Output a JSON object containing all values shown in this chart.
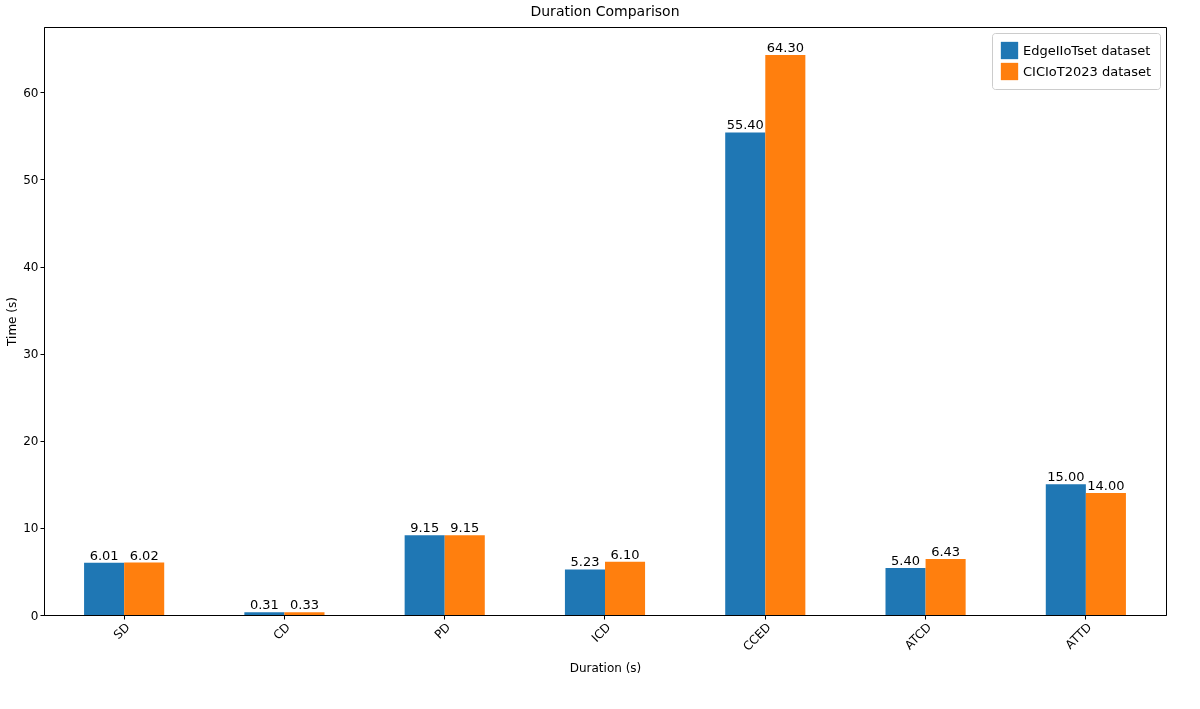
{
  "chart_data": {
    "type": "bar",
    "title": "Duration Comparison",
    "xlabel": "Duration (s)",
    "ylabel": "Time (s)",
    "categories": [
      "SD",
      "CD",
      "PD",
      "ICD",
      "CCED",
      "ATCD",
      "ATTD"
    ],
    "series": [
      {
        "name": "EdgeIIoTset dataset",
        "color": "#1f77b4",
        "values": [
          6.01,
          0.31,
          9.15,
          5.23,
          55.4,
          5.4,
          15.0
        ],
        "value_labels": [
          "6.01",
          "0.31",
          "9.15",
          "5.23",
          "55.40",
          "5.40",
          "15.00"
        ]
      },
      {
        "name": "CICIoT2023 dataset",
        "color": "#ff7f0e",
        "values": [
          6.02,
          0.33,
          9.15,
          6.1,
          64.3,
          6.43,
          14.0
        ],
        "value_labels": [
          "6.02",
          "0.33",
          "9.15",
          "6.10",
          "64.30",
          "6.43",
          "14.00"
        ]
      }
    ],
    "ylim": [
      0,
      67.5
    ],
    "yticks": [
      0,
      10,
      20,
      30,
      40,
      50,
      60
    ],
    "grid": false,
    "legend": "top right"
  }
}
